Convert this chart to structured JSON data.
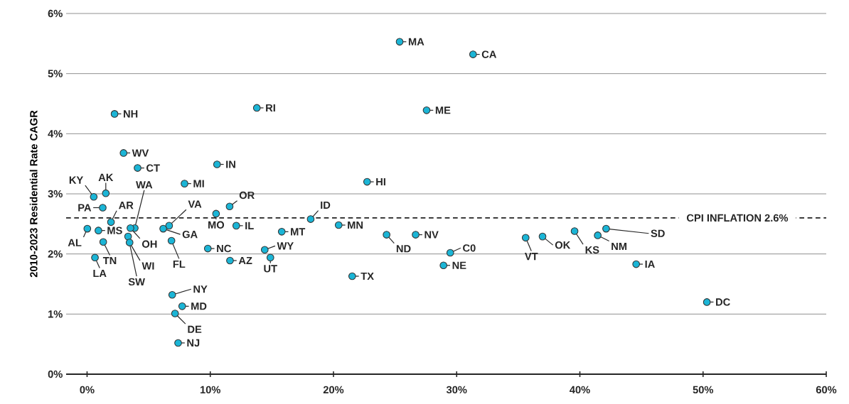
{
  "chart_data": {
    "type": "scatter",
    "ylabel": "2010-2023 Residential Rate CAGR",
    "x": [
      2.23,
      0.54,
      1.52,
      1.27,
      1.94,
      0.02,
      0.92,
      1.31,
      0.64,
      2.96,
      4.1,
      3.87,
      3.52,
      3.33,
      3.45,
      6.66,
      6.18,
      6.85,
      7.91,
      10.55,
      11.57,
      10.47,
      12.11,
      9.8,
      11.6,
      14.42,
      14.88,
      6.91,
      7.72,
      7.14,
      7.39,
      13.78,
      15.8,
      18.15,
      22.73,
      20.42,
      21.52,
      24.31,
      26.67,
      25.37,
      31.33,
      27.56,
      29.48,
      28.93,
      35.6,
      36.97,
      39.57,
      41.45,
      42.13,
      44.57,
      50.31
    ],
    "values": [
      4.33,
      2.95,
      3.01,
      2.77,
      2.53,
      2.42,
      2.39,
      2.2,
      1.94,
      3.68,
      3.43,
      2.43,
      2.43,
      2.29,
      2.19,
      2.47,
      2.42,
      2.22,
      3.17,
      3.49,
      2.79,
      2.67,
      2.47,
      2.09,
      1.89,
      2.07,
      1.94,
      1.32,
      1.13,
      1.01,
      0.52,
      4.43,
      2.37,
      2.58,
      3.2,
      2.48,
      1.63,
      2.32,
      2.32,
      5.53,
      5.32,
      4.39,
      2.02,
      1.81,
      2.27,
      2.29,
      2.38,
      2.31,
      2.42,
      1.83,
      1.2
    ],
    "color": "#1bb5d6",
    "marker": "circle",
    "grid": "y",
    "xlim": [
      -1.7,
      60
    ],
    "ylim": [
      0,
      6
    ],
    "xticks": [
      {
        "value": 0,
        "label": "0%"
      },
      {
        "value": 10,
        "label": "10%"
      },
      {
        "value": 20,
        "label": "20%"
      },
      {
        "value": 30,
        "label": "30%"
      },
      {
        "value": 40,
        "label": "40%"
      },
      {
        "value": 50,
        "label": "50%"
      },
      {
        "value": 60,
        "label": "60%"
      }
    ],
    "yticks": [
      {
        "value": 0,
        "label": "0%"
      },
      {
        "value": 1,
        "label": "1%"
      },
      {
        "value": 2,
        "label": "2%"
      },
      {
        "value": 3,
        "label": "3%"
      },
      {
        "value": 4,
        "label": "4%"
      },
      {
        "value": 5,
        "label": "5%"
      },
      {
        "value": 6,
        "label": "6%"
      }
    ],
    "ref_lines": [
      {
        "axis": "y",
        "value": 2.6,
        "label": "CPI  INFLATION 2.6%",
        "line_style": "dashed",
        "color": "#222222"
      }
    ],
    "annotations": [
      {
        "text": "NH",
        "x": 2.23,
        "y": 4.33
      },
      {
        "text": "KY",
        "x": 0.54,
        "y": 2.95
      },
      {
        "text": "AK",
        "x": 1.52,
        "y": 3.01
      },
      {
        "text": "PA",
        "x": 1.27,
        "y": 2.77
      },
      {
        "text": "AR",
        "x": 1.94,
        "y": 2.53
      },
      {
        "text": "AL",
        "x": 0.02,
        "y": 2.42
      },
      {
        "text": "MS",
        "x": 0.92,
        "y": 2.39
      },
      {
        "text": "TN",
        "x": 1.31,
        "y": 2.2
      },
      {
        "text": "LA",
        "x": 0.64,
        "y": 1.94
      },
      {
        "text": "WV",
        "x": 2.96,
        "y": 3.68
      },
      {
        "text": "CT",
        "x": 4.1,
        "y": 3.43
      },
      {
        "text": "WA",
        "x": 3.87,
        "y": 2.43
      },
      {
        "text": "OH",
        "x": 3.52,
        "y": 2.43
      },
      {
        "text": "SW",
        "x": 3.33,
        "y": 2.29
      },
      {
        "text": "WI",
        "x": 3.45,
        "y": 2.19
      },
      {
        "text": "VA",
        "x": 6.66,
        "y": 2.47
      },
      {
        "text": "GA",
        "x": 6.18,
        "y": 2.42
      },
      {
        "text": "FL",
        "x": 6.85,
        "y": 2.22
      },
      {
        "text": "MI",
        "x": 7.91,
        "y": 3.17
      },
      {
        "text": "IN",
        "x": 10.55,
        "y": 3.49
      },
      {
        "text": "OR",
        "x": 11.57,
        "y": 2.79
      },
      {
        "text": "MO",
        "x": 10.47,
        "y": 2.67
      },
      {
        "text": "IL",
        "x": 12.11,
        "y": 2.47
      },
      {
        "text": "NC",
        "x": 9.8,
        "y": 2.09
      },
      {
        "text": "AZ",
        "x": 11.6,
        "y": 1.89
      },
      {
        "text": "WY",
        "x": 14.42,
        "y": 2.07
      },
      {
        "text": "UT",
        "x": 14.88,
        "y": 1.94
      },
      {
        "text": "NY",
        "x": 6.91,
        "y": 1.32
      },
      {
        "text": "MD",
        "x": 7.72,
        "y": 1.13
      },
      {
        "text": "DE",
        "x": 7.14,
        "y": 1.01
      },
      {
        "text": "NJ",
        "x": 7.39,
        "y": 0.52
      },
      {
        "text": "RI",
        "x": 13.78,
        "y": 4.43
      },
      {
        "text": "MT",
        "x": 15.8,
        "y": 2.37
      },
      {
        "text": "ID",
        "x": 18.15,
        "y": 2.58
      },
      {
        "text": "HI",
        "x": 22.73,
        "y": 3.2
      },
      {
        "text": "MN",
        "x": 20.42,
        "y": 2.48
      },
      {
        "text": "TX",
        "x": 21.52,
        "y": 1.63
      },
      {
        "text": "ND",
        "x": 24.31,
        "y": 2.32
      },
      {
        "text": "NV",
        "x": 26.67,
        "y": 2.32
      },
      {
        "text": "MA",
        "x": 25.37,
        "y": 5.53
      },
      {
        "text": "CA",
        "x": 31.33,
        "y": 5.32
      },
      {
        "text": "ME",
        "x": 27.56,
        "y": 4.39
      },
      {
        "text": "C0",
        "x": 29.48,
        "y": 2.02
      },
      {
        "text": "NE",
        "x": 28.93,
        "y": 1.81
      },
      {
        "text": "VT",
        "x": 35.6,
        "y": 2.27
      },
      {
        "text": "OK",
        "x": 36.97,
        "y": 2.29
      },
      {
        "text": "KS",
        "x": 39.57,
        "y": 2.38
      },
      {
        "text": "NM",
        "x": 41.45,
        "y": 2.31
      },
      {
        "text": "SD",
        "x": 42.13,
        "y": 2.42
      },
      {
        "text": "IA",
        "x": 44.57,
        "y": 1.83
      },
      {
        "text": "DC",
        "x": 50.31,
        "y": 1.2
      }
    ]
  }
}
